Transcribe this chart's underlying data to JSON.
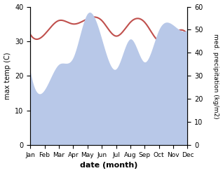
{
  "months": [
    "Jan",
    "Feb",
    "Mar",
    "Apr",
    "May",
    "Jun",
    "Jul",
    "Aug",
    "Sep",
    "Oct",
    "Nov",
    "Dec"
  ],
  "month_x": [
    0,
    1,
    2,
    3,
    4,
    5,
    6,
    7,
    8,
    9,
    10,
    11
  ],
  "max_temp": [
    32.0,
    32.0,
    36.0,
    35.0,
    36.5,
    36.0,
    31.5,
    35.5,
    35.5,
    30.0,
    32.0,
    32.0
  ],
  "precipitation": [
    32.0,
    24.0,
    35.0,
    38.0,
    57.0,
    46.0,
    33.0,
    46.0,
    36.0,
    50.0,
    52.0,
    50.0
  ],
  "temp_color": "#c0504d",
  "precip_fill_color": "#b8c8e8",
  "temp_ylim": [
    0,
    40
  ],
  "precip_ylim": [
    0,
    60
  ],
  "xlabel": "date (month)",
  "ylabel_left": "max temp (C)",
  "ylabel_right": "med. precipitation (kg/m2)",
  "bg_color": "#ffffff"
}
